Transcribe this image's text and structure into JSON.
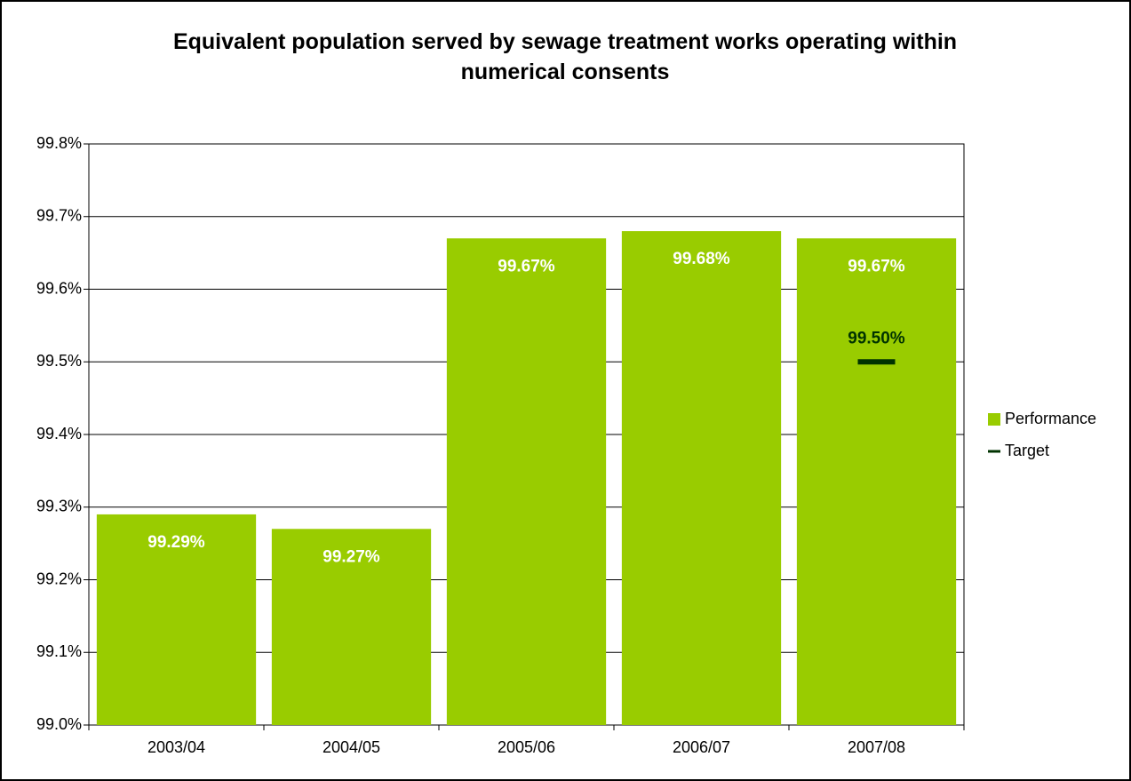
{
  "chart_data": {
    "type": "bar",
    "title": "Equivalent population served by sewage treatment works operating within numerical consents",
    "categories": [
      "2003/04",
      "2004/05",
      "2005/06",
      "2006/07",
      "2007/08"
    ],
    "series": [
      {
        "name": "Performance",
        "color": "#99cc00",
        "values": [
          99.29,
          99.27,
          99.67,
          99.68,
          99.67
        ],
        "value_labels": [
          "99.29%",
          "99.27%",
          "99.67%",
          "99.68%",
          "99.67%"
        ]
      },
      {
        "name": "Target",
        "color": "#003300",
        "values": [
          null,
          null,
          null,
          null,
          99.5
        ],
        "value_labels": [
          null,
          null,
          null,
          null,
          "99.50%"
        ]
      }
    ],
    "ylim": [
      99.0,
      99.8
    ],
    "yticks": [
      {
        "value": 99.0,
        "label": "99.0%"
      },
      {
        "value": 99.1,
        "label": "99.1%"
      },
      {
        "value": 99.2,
        "label": "99.2%"
      },
      {
        "value": 99.3,
        "label": "99.3%"
      },
      {
        "value": 99.4,
        "label": "99.4%"
      },
      {
        "value": 99.5,
        "label": "99.5%"
      },
      {
        "value": 99.6,
        "label": "99.6%"
      },
      {
        "value": 99.7,
        "label": "99.7%"
      },
      {
        "value": 99.8,
        "label": "99.8%"
      }
    ],
    "grid": true,
    "legend": "right"
  }
}
